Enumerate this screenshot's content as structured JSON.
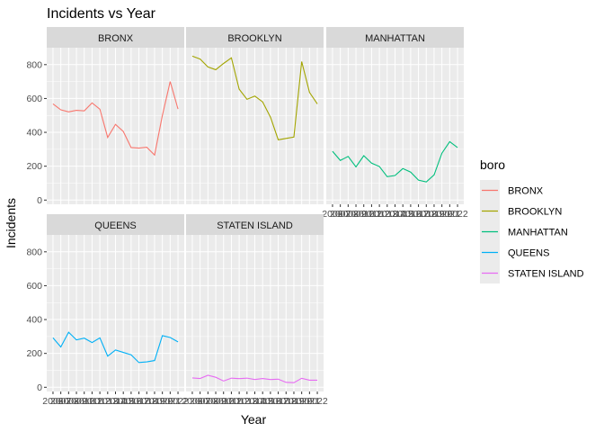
{
  "chart_data": {
    "type": "line",
    "title": "Incidents vs Year",
    "xlabel": "Year",
    "ylabel": "Incidents",
    "ylim": [
      -25,
      900
    ],
    "xlim": [
      2005.2,
      2022.8
    ],
    "yticks": [
      0,
      200,
      400,
      600,
      800
    ],
    "xticks": [
      2006,
      2007,
      2008,
      2009,
      2010,
      2011,
      2012,
      2013,
      2014,
      2015,
      2016,
      2017,
      2018,
      2019,
      2020,
      2021,
      2022
    ],
    "grid": true,
    "legend": {
      "title": "boro",
      "position": "right"
    },
    "colors": {
      "BRONX": "#F8766D",
      "BROOKLYN": "#A3A500",
      "MANHATTAN": "#00BF7D",
      "QUEENS": "#00B0F6",
      "STATEN ISLAND": "#E76BF3"
    },
    "panel_background": "#EBEBEB",
    "strip_background": "#D9D9D9",
    "x": [
      2006,
      2007,
      2008,
      2009,
      2010,
      2011,
      2012,
      2013,
      2014,
      2015,
      2016,
      2017,
      2018,
      2019,
      2020,
      2021,
      2022
    ],
    "series": [
      {
        "name": "BRONX",
        "values": [
          568,
          533,
          521,
          530,
          527,
          574,
          537,
          370,
          447,
          405,
          310,
          307,
          312,
          266,
          500,
          700,
          538
        ]
      },
      {
        "name": "BROOKLYN",
        "values": [
          850,
          833,
          786,
          770,
          807,
          840,
          655,
          595,
          614,
          580,
          490,
          356,
          364,
          372,
          818,
          636,
          568
        ]
      },
      {
        "name": "MANHATTAN",
        "values": [
          288,
          234,
          258,
          196,
          262,
          218,
          198,
          138,
          145,
          186,
          165,
          118,
          107,
          149,
          277,
          345,
          310
        ]
      },
      {
        "name": "QUEENS",
        "values": [
          292,
          238,
          325,
          280,
          290,
          264,
          292,
          184,
          220,
          206,
          192,
          146,
          150,
          158,
          305,
          294,
          268
        ]
      },
      {
        "name": "STATEN ISLAND",
        "values": [
          55,
          52,
          71,
          59,
          37,
          54,
          51,
          54,
          46,
          52,
          46,
          48,
          29,
          27,
          53,
          42,
          42
        ]
      }
    ]
  }
}
